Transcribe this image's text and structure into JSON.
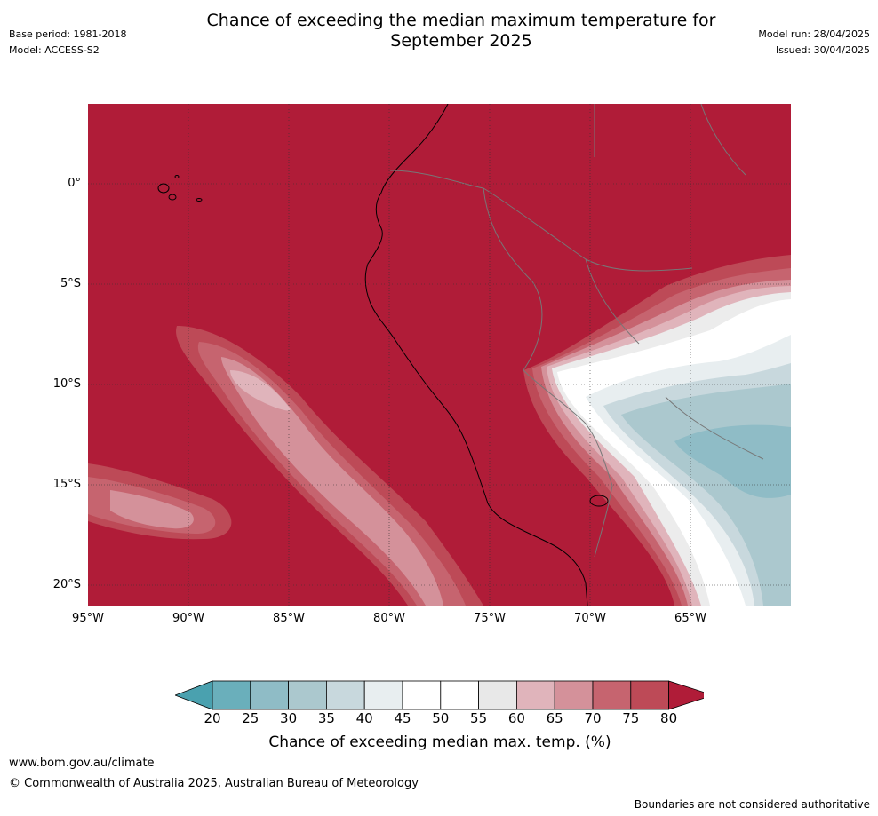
{
  "header": {
    "base_period": "Base period: 1981-2018",
    "model": "Model: ACCESS-S2",
    "title_line1": "Chance of exceeding the median maximum temperature for",
    "title_line2": "September 2025",
    "model_run": "Model run: 28/04/2025",
    "issued": "Issued: 30/04/2025"
  },
  "map": {
    "lat_ticks": [
      "0°",
      "5°S",
      "10°S",
      "15°S",
      "20°S"
    ],
    "lon_ticks": [
      "95°W",
      "90°W",
      "85°W",
      "80°W",
      "75°W",
      "70°W",
      "65°W"
    ]
  },
  "colorbar": {
    "labels": [
      "20",
      "25",
      "30",
      "35",
      "40",
      "45",
      "50",
      "55",
      "60",
      "65",
      "70",
      "75",
      "80"
    ],
    "colors": [
      "#4aa1af",
      "#6aafbb",
      "#8fbcc6",
      "#abc8ce",
      "#c8d8dd",
      "#e8eef0",
      "#ffffff",
      "#ffffff",
      "#e8e8e8",
      "#e0b4bb",
      "#d4919a",
      "#c6646f",
      "#bd4a57",
      "#b01c38"
    ],
    "title": "Chance of exceeding median max. temp. (%)"
  },
  "footer": {
    "url": "www.bom.gov.au/climate",
    "copyright": "© Commonwealth of Australia 2025, Australian Bureau of Meteorology",
    "disclaimer": "Boundaries are not considered authoritative"
  }
}
